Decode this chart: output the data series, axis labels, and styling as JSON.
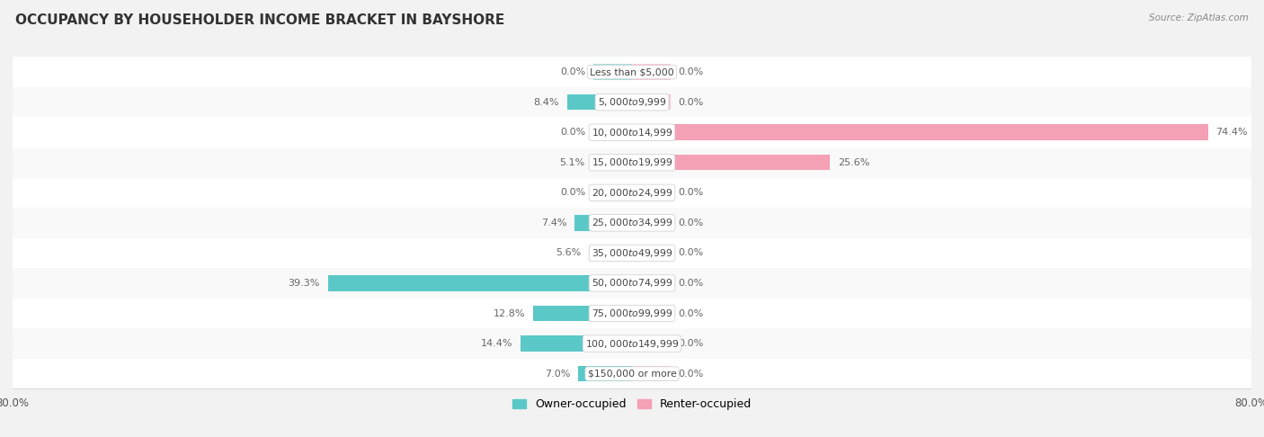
{
  "title": "OCCUPANCY BY HOUSEHOLDER INCOME BRACKET IN BAYSHORE",
  "source": "Source: ZipAtlas.com",
  "categories": [
    "Less than $5,000",
    "$5,000 to $9,999",
    "$10,000 to $14,999",
    "$15,000 to $19,999",
    "$20,000 to $24,999",
    "$25,000 to $34,999",
    "$35,000 to $49,999",
    "$50,000 to $74,999",
    "$75,000 to $99,999",
    "$100,000 to $149,999",
    "$150,000 or more"
  ],
  "owner_values": [
    0.0,
    8.4,
    0.0,
    5.1,
    0.0,
    7.4,
    5.6,
    39.3,
    12.8,
    14.4,
    7.0
  ],
  "renter_values": [
    0.0,
    0.0,
    74.4,
    25.6,
    0.0,
    0.0,
    0.0,
    0.0,
    0.0,
    0.0,
    0.0
  ],
  "owner_color": "#5bc8c8",
  "renter_color": "#f4a0b5",
  "owner_stub_color": "#a8dede",
  "renter_stub_color": "#f9c8d5",
  "axis_max": 80.0,
  "stub_min": 5.0,
  "background_color": "#f2f2f2",
  "row_bg_even": "#f9f9f9",
  "row_bg_odd": "#ffffff",
  "row_border_color": "#dddddd",
  "label_color": "#555555",
  "value_label_color": "#666666",
  "title_color": "#333333",
  "bar_height": 0.52,
  "legend_owner": "Owner-occupied",
  "legend_renter": "Renter-occupied",
  "pill_text_color": "#444444",
  "pill_bg": "#ffffff",
  "pill_border": "#cccccc"
}
